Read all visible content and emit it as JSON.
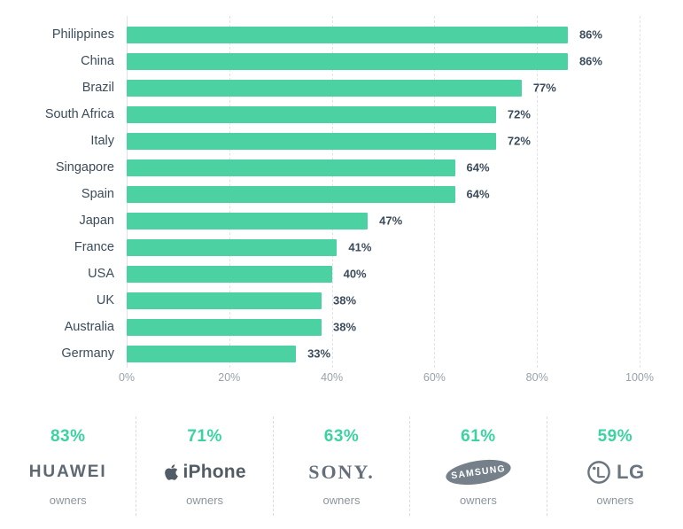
{
  "chart_data": {
    "type": "bar",
    "orientation": "horizontal",
    "title": "",
    "xlabel": "",
    "ylabel": "",
    "categories": [
      "Philippines",
      "China",
      "Brazil",
      "South Africa",
      "Italy",
      "Singapore",
      "Spain",
      "Japan",
      "France",
      "USA",
      "UK",
      "Australia",
      "Germany"
    ],
    "values": [
      86,
      86,
      77,
      72,
      72,
      64,
      64,
      47,
      41,
      40,
      38,
      38,
      33
    ],
    "value_labels": [
      "86%",
      "86%",
      "77%",
      "72%",
      "72%",
      "64%",
      "64%",
      "47%",
      "41%",
      "40%",
      "38%",
      "38%",
      "33%"
    ],
    "xlim": [
      0,
      100
    ],
    "x_tick_values": [
      0,
      20,
      40,
      60,
      80,
      100
    ],
    "x_tick_labels": [
      "0%",
      "20%",
      "40%",
      "60%",
      "80%",
      "100%"
    ],
    "grid": "dashed-vertical-gridlines",
    "legend": "none",
    "bar_color": "#4cd2a2",
    "label_color": "#3b4c5c",
    "tick_color": "#98a2ac"
  },
  "colors": {
    "accent_teal": "#3bd3a0",
    "bar_green": "#4cd2a2",
    "dark_slate": "#3b4c5c",
    "brand_gray": "#646f7a",
    "owners_gray": "#8c959d",
    "gridline_gray": "#dfe3e7"
  },
  "brands": [
    {
      "pct": "83%",
      "name": "HUAWEI",
      "logo": "huawei-wordmark",
      "owners": "owners"
    },
    {
      "pct": "71%",
      "name": "iPhone",
      "logo": "apple-logo-and-iphone-wordmark",
      "owners": "owners"
    },
    {
      "pct": "63%",
      "name": "SONY.",
      "logo": "sony-wordmark",
      "owners": "owners"
    },
    {
      "pct": "61%",
      "name": "SAMSUNG",
      "logo": "samsung-oval-logo",
      "owners": "owners"
    },
    {
      "pct": "59%",
      "name": "LG",
      "logo": "lg-emblem",
      "owners": "owners"
    }
  ]
}
